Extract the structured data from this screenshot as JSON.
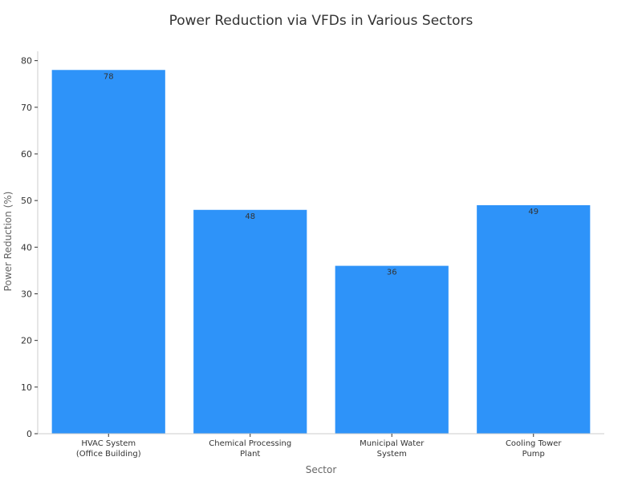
{
  "chart_data": {
    "type": "bar",
    "title": "Power Reduction via VFDs in Various Sectors",
    "xlabel": "Sector",
    "ylabel": "Power Reduction (%)",
    "categories": [
      [
        "HVAC System",
        "(Office Building)"
      ],
      [
        "Chemical Processing",
        "Plant"
      ],
      [
        "Municipal Water",
        "System"
      ],
      [
        "Cooling Tower",
        "Pump"
      ]
    ],
    "values": [
      78,
      48,
      36,
      49
    ],
    "ylim": [
      0,
      82
    ],
    "yticks": [
      0,
      10,
      20,
      30,
      40,
      50,
      60,
      70,
      80
    ],
    "grid": false,
    "legend": "none",
    "bar_color": "#2e93f9"
  }
}
